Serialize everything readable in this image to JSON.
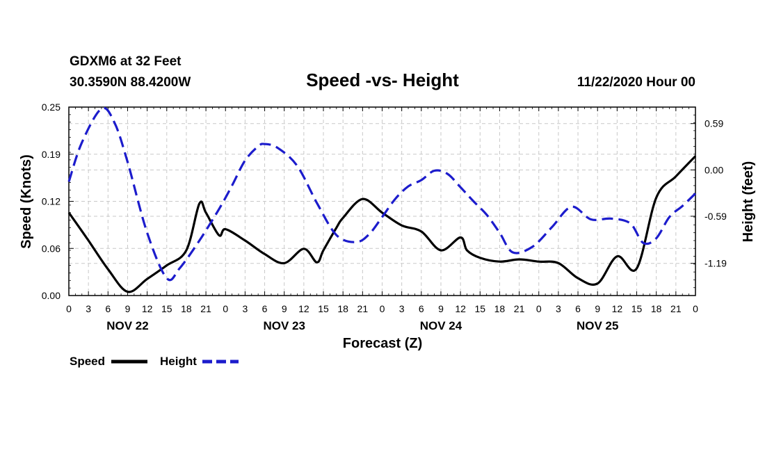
{
  "header": {
    "station": "GDXM6 at 32 Feet",
    "location": "30.3590N 88.4200W",
    "title": "Speed -vs- Height",
    "datetime": "11/22/2020 Hour 00"
  },
  "legend": {
    "speed_label": "Speed",
    "height_label": "Height"
  },
  "chart_data": {
    "type": "line",
    "title": "Speed -vs- Height",
    "xlabel": "Forecast (Z)",
    "ylabel_left": "Speed (Knots)",
    "ylabel_right": "Height (feet)",
    "x_range_hours": [
      0,
      96
    ],
    "x_ticks": [
      "0",
      "3",
      "6",
      "9",
      "12",
      "15",
      "18",
      "21",
      "0",
      "3",
      "6",
      "9",
      "12",
      "15",
      "18",
      "21",
      "0",
      "3",
      "6",
      "9",
      "12",
      "15",
      "18",
      "21",
      "0",
      "3",
      "6",
      "9",
      "12",
      "15",
      "18",
      "21",
      "0"
    ],
    "days": [
      {
        "label": "NOV 22",
        "hour": 9
      },
      {
        "label": "NOV 23",
        "hour": 33
      },
      {
        "label": "NOV 24",
        "hour": 57
      },
      {
        "label": "NOV 25",
        "hour": 81
      }
    ],
    "y_left": {
      "range": [
        0,
        0.25
      ],
      "ticks": [
        "0.00",
        "0.06",
        "0.12",
        "0.19",
        "0.25"
      ],
      "tick_values": [
        0,
        0.0625,
        0.125,
        0.1875,
        0.25
      ]
    },
    "y_right": {
      "range": [
        -1.6,
        0.8
      ],
      "ticks": [
        "0.59",
        "0.00",
        "-0.59",
        "-1.19"
      ],
      "tick_values": [
        0.59,
        0.0,
        -0.59,
        -1.19
      ]
    },
    "grid": true,
    "legend_position": "bottom-left",
    "series": [
      {
        "name": "Speed",
        "axis": "left",
        "color": "#000000",
        "style": "solid",
        "x": [
          0,
          3,
          6,
          9,
          12,
          15,
          18,
          20,
          21,
          23,
          24,
          27,
          30,
          33,
          36,
          38,
          39,
          41,
          42,
          45,
          48,
          51,
          54,
          57,
          60,
          61,
          63,
          66,
          69,
          72,
          75,
          78,
          81,
          84,
          87,
          90,
          93,
          96
        ],
        "y": [
          0.11,
          0.073,
          0.035,
          0.005,
          0.022,
          0.04,
          0.06,
          0.122,
          0.11,
          0.08,
          0.088,
          0.073,
          0.055,
          0.043,
          0.062,
          0.044,
          0.06,
          0.09,
          0.103,
          0.128,
          0.11,
          0.093,
          0.085,
          0.06,
          0.077,
          0.06,
          0.05,
          0.045,
          0.048,
          0.045,
          0.043,
          0.023,
          0.016,
          0.052,
          0.036,
          0.13,
          0.158,
          0.185
        ]
      },
      {
        "name": "Height",
        "axis": "right",
        "color": "#1c1ccc",
        "style": "dashed",
        "x": [
          0,
          2,
          5,
          7,
          9,
          12,
          15,
          17,
          20,
          23,
          25,
          27,
          29,
          30,
          32,
          35,
          38,
          41,
          44,
          46,
          48,
          50,
          52,
          54,
          56,
          58,
          60,
          62,
          64,
          66,
          68,
          71,
          74,
          77,
          80,
          83,
          86,
          88,
          90,
          92,
          94,
          96
        ],
        "y": [
          -0.15,
          0.35,
          0.78,
          0.6,
          0.1,
          -0.8,
          -1.38,
          -1.25,
          -0.9,
          -0.5,
          -0.2,
          0.12,
          0.3,
          0.33,
          0.28,
          0.05,
          -0.42,
          -0.83,
          -0.92,
          -0.82,
          -0.6,
          -0.37,
          -0.21,
          -0.13,
          -0.01,
          -0.05,
          -0.22,
          -0.4,
          -0.57,
          -0.8,
          -1.05,
          -0.98,
          -0.73,
          -0.47,
          -0.63,
          -0.62,
          -0.68,
          -0.93,
          -0.87,
          -0.6,
          -0.46,
          -0.3
        ]
      }
    ]
  }
}
